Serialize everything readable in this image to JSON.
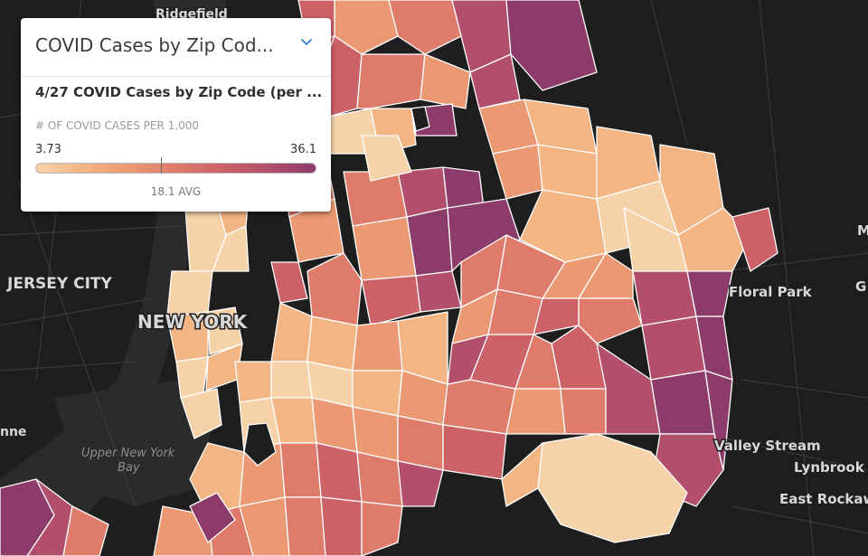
{
  "legend": {
    "title": "COVID Cases by Zip Cod...",
    "layer_title": "4/27 COVID Cases by Zip Code (per ...",
    "metric_label": "# OF COVID CASES PER 1,000",
    "min": "3.73",
    "max": "36.1",
    "avg": "18.1 AVG",
    "chevron_icon": "chevron-down-icon",
    "ramp_colors": [
      "#f6d2a9",
      "#f3b584",
      "#ea9972",
      "#df7b6a",
      "#cd6168",
      "#b24f6b",
      "#8c3b6a"
    ]
  },
  "map": {
    "place_labels": {
      "ridgefield": "Ridgefield",
      "jersey_city": "JERSEY CITY",
      "new_york": "NEW YORK",
      "floral_park": "Floral Park",
      "valley_stream": "Valley Stream",
      "lynbrook": "Lynbrook",
      "east_rockaway": "East Rockaw",
      "nne": "nne",
      "m_edge": "M",
      "g_edge": "G",
      "upper_bay_1": "Upper New York",
      "upper_bay_2": "Bay"
    },
    "colors": {
      "background": "#1e1e1f",
      "water": "#2b2b2c",
      "road": "#3a3a3b",
      "zip_border": "#ffffff"
    }
  }
}
